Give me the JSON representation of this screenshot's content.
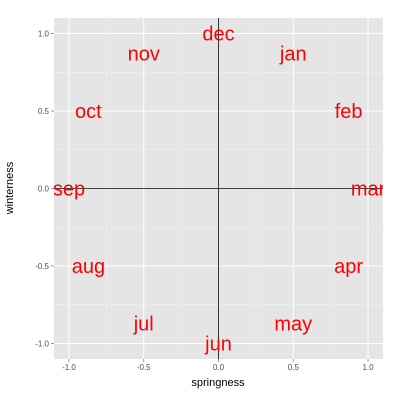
{
  "chart_data": {
    "type": "scatter",
    "title": "",
    "xlabel": "springness",
    "ylabel": "winterness",
    "xlim": [
      -1.1,
      1.1
    ],
    "ylim": [
      -1.1,
      1.1
    ],
    "x_ticks": [
      -1.0,
      -0.5,
      0.0,
      0.5,
      1.0
    ],
    "x_tick_labels": [
      "-1.0",
      "-0.5",
      "0.0",
      "0.5",
      "1.0"
    ],
    "y_ticks": [
      -1.0,
      -0.5,
      0.0,
      0.5,
      1.0
    ],
    "y_tick_labels": [
      "-1.0",
      "-0.5",
      "0.0",
      "0.5",
      "1.0"
    ],
    "grid": true,
    "reference_lines": {
      "x": 0,
      "y": 0
    },
    "label_color": "#ff0000",
    "panel_color": "#e5e5e5",
    "grid_color": "#ffffff",
    "points": [
      {
        "label": "jan",
        "x": 0.5,
        "y": 0.87
      },
      {
        "label": "feb",
        "x": 0.87,
        "y": 0.5
      },
      {
        "label": "mar",
        "x": 1.0,
        "y": 0.0
      },
      {
        "label": "apr",
        "x": 0.87,
        "y": -0.5
      },
      {
        "label": "may",
        "x": 0.5,
        "y": -0.87
      },
      {
        "label": "jun",
        "x": 0.0,
        "y": -1.0
      },
      {
        "label": "jul",
        "x": -0.5,
        "y": -0.87
      },
      {
        "label": "aug",
        "x": -0.87,
        "y": -0.5
      },
      {
        "label": "sep",
        "x": -1.0,
        "y": 0.0
      },
      {
        "label": "oct",
        "x": -0.87,
        "y": 0.5
      },
      {
        "label": "nov",
        "x": -0.5,
        "y": 0.87
      },
      {
        "label": "dec",
        "x": 0.0,
        "y": 1.0
      }
    ]
  }
}
